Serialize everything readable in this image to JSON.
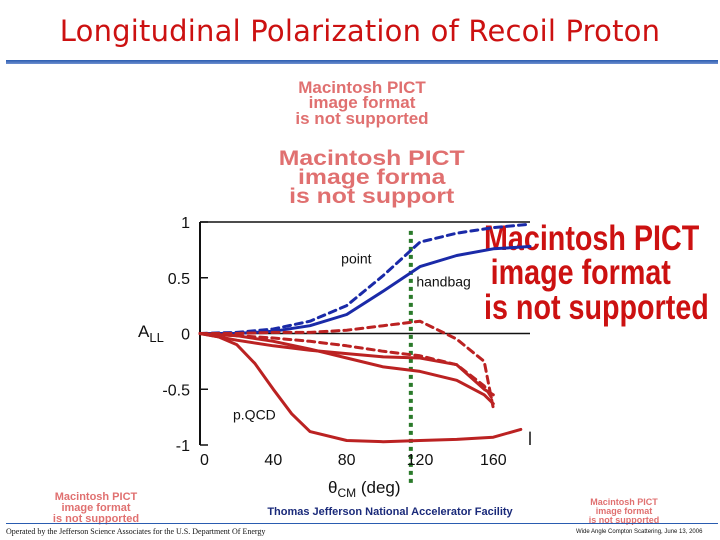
{
  "slide": {
    "title": "Longitudinal Polarization of Recoil Proton",
    "footer_center": "Thomas Jefferson National Accelerator Facility",
    "footer_left": "Operated by the Jefferson Science Associates for the U.S. Department Of Energy",
    "footer_right": "Wide Angle Compton Scattering, June 13, 2006",
    "placeholders": [
      {
        "lines": [
          "Macintosh PICT",
          "image format",
          "is not supported"
        ]
      },
      {
        "lines": [
          "Macintosh PICT",
          "image forma",
          "is not support"
        ]
      },
      {
        "lines": [
          "Macintosh PICT",
          "image format",
          "is not supported"
        ]
      },
      {
        "lines": [
          "Macintosh PICT",
          "image format",
          "is not supported"
        ]
      },
      {
        "lines": [
          "Macintosh PICT",
          "image format",
          "is not supported"
        ]
      }
    ]
  },
  "chart_data": {
    "type": "line",
    "title": "",
    "xlabel": "θCM (deg)",
    "ylabel": "ALL",
    "xlim": [
      0,
      180
    ],
    "ylim": [
      -1,
      1
    ],
    "xticks": [
      0,
      40,
      80,
      120,
      160
    ],
    "yticks": [
      1,
      0.5,
      0,
      -0.5,
      -1
    ],
    "xtick_labels": [
      "0",
      "40",
      "80",
      "120",
      "160"
    ],
    "ytick_labels": [
      "1",
      "0.5",
      "0",
      "-0.5",
      "-1"
    ],
    "zero_line": true,
    "vertical_marker_x": 115,
    "colors": {
      "blue": "#1a2aa8",
      "red": "#bb2222",
      "marker": "#2a7a2a",
      "axes": "#111111"
    },
    "annotations": [
      {
        "text": "point",
        "x": 77,
        "y": 0.63
      },
      {
        "text": "handbag",
        "x": 118,
        "y": 0.42
      },
      {
        "text": "p.QCD",
        "x": 18,
        "y": -0.77
      }
    ],
    "series": [
      {
        "color": "blue",
        "dash": true,
        "x": [
          0,
          20,
          40,
          60,
          80,
          100,
          120,
          140,
          160,
          180
        ],
        "y": [
          0,
          0.01,
          0.04,
          0.11,
          0.25,
          0.52,
          0.82,
          0.9,
          0.95,
          0.98
        ]
      },
      {
        "color": "blue",
        "dash": false,
        "x": [
          0,
          20,
          40,
          60,
          80,
          100,
          120,
          140,
          160,
          180
        ],
        "y": [
          0,
          0,
          0.02,
          0.07,
          0.17,
          0.38,
          0.6,
          0.7,
          0.76,
          0.78
        ]
      },
      {
        "color": "red",
        "dash": true,
        "x": [
          0,
          20,
          40,
          60,
          80,
          100,
          120,
          140,
          155,
          160
        ],
        "y": [
          0,
          0,
          0.01,
          0.01,
          0.03,
          0.07,
          0.11,
          -0.05,
          -0.25,
          -0.67
        ]
      },
      {
        "color": "red",
        "dash": true,
        "x": [
          0,
          20,
          40,
          60,
          80,
          100,
          120,
          140,
          155,
          160
        ],
        "y": [
          0,
          -0.02,
          -0.04,
          -0.07,
          -0.11,
          -0.16,
          -0.2,
          -0.28,
          -0.47,
          -0.6
        ]
      },
      {
        "color": "red",
        "dash": false,
        "x": [
          0,
          20,
          40,
          60,
          80,
          100,
          120,
          140,
          155,
          160
        ],
        "y": [
          0,
          -0.06,
          -0.11,
          -0.15,
          -0.18,
          -0.21,
          -0.22,
          -0.28,
          -0.5,
          -0.55
        ]
      },
      {
        "color": "red",
        "dash": false,
        "x": [
          0,
          20,
          40,
          60,
          80,
          100,
          120,
          140,
          155,
          160
        ],
        "y": [
          0,
          -0.02,
          -0.07,
          -0.14,
          -0.22,
          -0.3,
          -0.34,
          -0.42,
          -0.55,
          -0.63
        ]
      },
      {
        "color": "red",
        "dash": false,
        "x": [
          0,
          10,
          20,
          30,
          40,
          50,
          60,
          80,
          100,
          120,
          140,
          160,
          175
        ],
        "y": [
          0,
          -0.03,
          -0.1,
          -0.27,
          -0.5,
          -0.72,
          -0.88,
          -0.96,
          -0.97,
          -0.96,
          -0.95,
          -0.93,
          -0.86
        ]
      }
    ]
  }
}
